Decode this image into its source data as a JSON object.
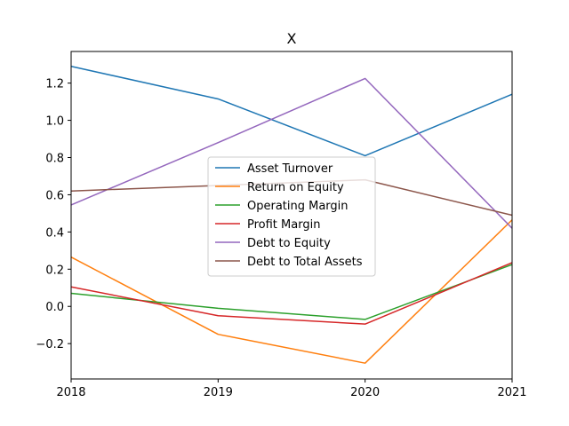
{
  "chart_data": {
    "type": "line",
    "title": "X",
    "xlabel": "",
    "ylabel": "",
    "x": [
      "2018",
      "2019",
      "2020",
      "2021"
    ],
    "xlim": [
      2018,
      2021
    ],
    "ylim": [
      -0.39,
      1.37
    ],
    "y_ticks": [
      "−0.2",
      "0.0",
      "0.2",
      "0.4",
      "0.6",
      "0.8",
      "1.0",
      "1.2"
    ],
    "grid": false,
    "legend_position": "center",
    "series": [
      {
        "name": "Asset Turnover",
        "color": "#1f77b4",
        "values": [
          1.29,
          1.115,
          0.81,
          1.14
        ]
      },
      {
        "name": "Return on Equity",
        "color": "#ff7f0e",
        "values": [
          0.265,
          -0.15,
          -0.305,
          0.465
        ]
      },
      {
        "name": "Operating Margin",
        "color": "#2ca02c",
        "values": [
          0.07,
          -0.01,
          -0.07,
          0.225
        ]
      },
      {
        "name": "Profit Margin",
        "color": "#d62728",
        "values": [
          0.105,
          -0.05,
          -0.095,
          0.235
        ]
      },
      {
        "name": "Debt to Equity",
        "color": "#9467bd",
        "values": [
          0.545,
          0.88,
          1.225,
          0.42
        ]
      },
      {
        "name": "Debt to Total Assets",
        "color": "#8c564b",
        "values": [
          0.62,
          0.65,
          0.68,
          0.49
        ]
      }
    ]
  }
}
